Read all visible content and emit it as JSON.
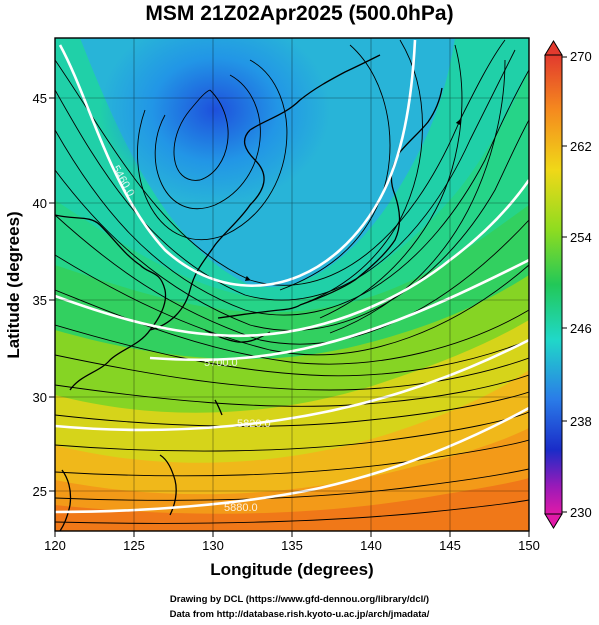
{
  "title": "MSM 21Z02Apr2025 (500.0hPa)",
  "axes": {
    "xlabel": "Longitude (degrees)",
    "ylabel": "Latitude  (degrees)",
    "xticks": [
      "120",
      "125",
      "130",
      "135",
      "140",
      "145",
      "150"
    ],
    "yticks": [
      "25",
      "30",
      "35",
      "40",
      "45"
    ]
  },
  "colorbar": {
    "ticks": [
      "270",
      "262",
      "254",
      "246",
      "238",
      "230"
    ],
    "min": 230,
    "max": 270
  },
  "contour_labels": [
    "5460.0",
    "5700.0",
    "5820.0",
    "5880.0"
  ],
  "credits": {
    "line1": "Drawing by DCL (https://www.gfd-dennou.org/library/dcl/)",
    "line2": "Data from http://database.rish.kyoto-u.ac.jp/arch/jmadata/"
  },
  "colors": {
    "cold": "#1e55dc",
    "mid": "#2ed86a",
    "warm": "#f07818",
    "contour": "#ffffff",
    "streamline": "#000000"
  },
  "chart_data": {
    "type": "heatmap",
    "title": "MSM 21Z02Apr2025 (500.0hPa)",
    "xlabel": "Longitude (degrees)",
    "ylabel": "Latitude  (degrees)",
    "xlim": [
      120,
      150
    ],
    "ylim": [
      22.5,
      48
    ],
    "colorbar_range": [
      230,
      270
    ],
    "colorbar_ticks": [
      230,
      238,
      246,
      254,
      262,
      270
    ],
    "geopotential_height_contours": [
      5460,
      5580,
      5700,
      5820,
      5880
    ],
    "temperature_center_low": {
      "lon": 131,
      "lat": 44.5,
      "value": 242
    },
    "overlays": [
      "streamlines",
      "coastlines",
      "lat-lon grid"
    ]
  }
}
